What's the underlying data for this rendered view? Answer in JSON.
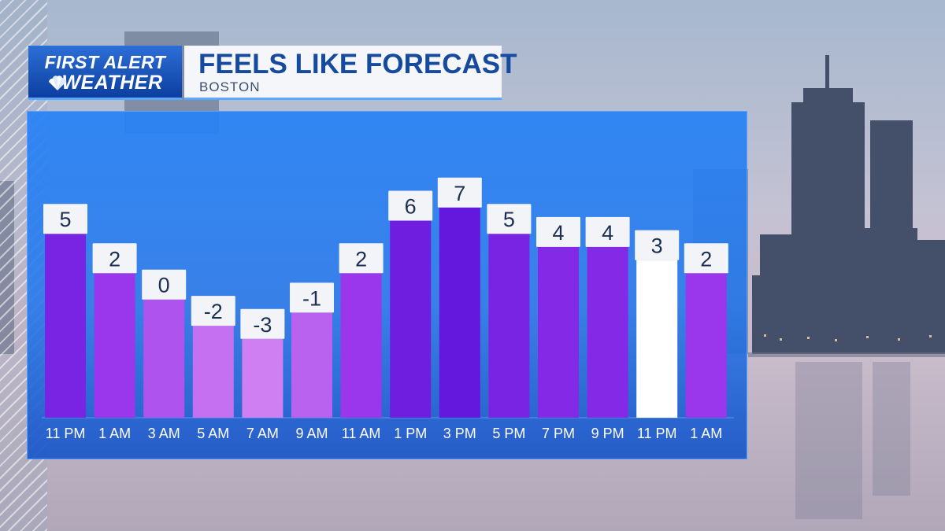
{
  "brand": {
    "line1": "FIRST ALERT",
    "line2": "WEATHER",
    "logo_icon": "nbc-peacock-icon"
  },
  "header": {
    "title": "FEELS LIKE FORECAST",
    "subtitle": "BOSTON"
  },
  "colors": {
    "bar_cold": "#cf7ff2",
    "bar_mid": "#9a36ec",
    "bar_warm": "#6418dd",
    "bar_highlight": "#ffffff",
    "label_box": "#f2f4f8",
    "label_text": "#1c2f52",
    "tick_text": "#ffffff",
    "panel": "#2a86f4",
    "accent": "#5aa8ff"
  },
  "chart_data": {
    "type": "bar",
    "categories": [
      "11 PM",
      "1 AM",
      "3 AM",
      "5 AM",
      "7 AM",
      "9 AM",
      "11 AM",
      "1 PM",
      "3 PM",
      "5 PM",
      "7 PM",
      "9 PM",
      "11 PM",
      "1 AM"
    ],
    "values": [
      5,
      2,
      0,
      -2,
      -3,
      -1,
      2,
      6,
      7,
      5,
      4,
      4,
      3,
      2
    ],
    "highlight_index": 12,
    "title": "FEELS LIKE FORECAST",
    "subtitle": "BOSTON",
    "xlabel": "",
    "ylabel": "",
    "ylim": [
      -9,
      12
    ],
    "grid": false,
    "legend": "none",
    "data_labels": true
  }
}
